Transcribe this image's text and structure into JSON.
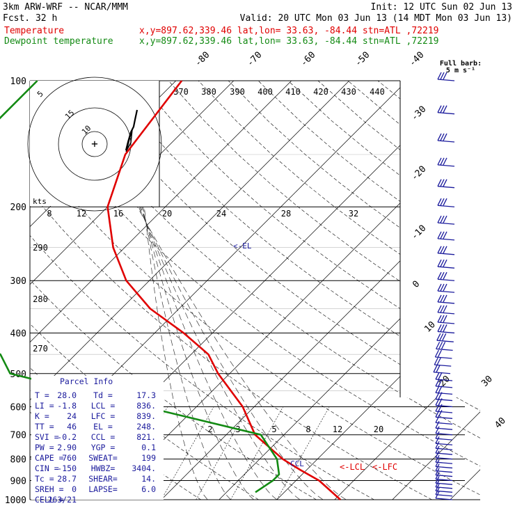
{
  "header": {
    "model": "3km ARW-WRF -- NCAR/MMM",
    "fcst": "Fcst.   32 h",
    "init": "Init: 12 UTC Sun 02 Jun 13",
    "valid": "Valid: 20 UTC Mon 03 Jun 13 (14 MDT Mon 03 Jun 13)",
    "temp_line": {
      "name": "Temperature",
      "info": "x,y=897.62,339.46   lat,lon= 33.63, -84.44   stn=ATL ,72219"
    },
    "dew_line": {
      "name": "Dewpoint temperature",
      "info": "x,y=897.62,339.46   lat,lon= 33.63, -84.44   stn=ATL ,72219"
    }
  },
  "barb_legend": {
    "line1": "Full barb:",
    "line2": "5 m s⁻¹"
  },
  "parcel_info": {
    "title": "Parcel Info",
    "rows": [
      [
        "T  =",
        "28.0",
        "Td =",
        "17.3"
      ],
      [
        "LI =",
        "-1.8",
        "LCL =",
        "836."
      ],
      [
        "K  =",
        "24",
        "LFC =",
        "839."
      ],
      [
        "TT =",
        "46",
        "EL  =",
        "248."
      ],
      [
        "SVI =",
        "-0.2",
        "CCL =",
        "821."
      ],
      [
        "PW =",
        "2.90",
        "YGP =",
        "0.1"
      ],
      [
        "CAPE =",
        "760",
        "SWEAT=",
        "199"
      ],
      [
        "CIN =",
        "-150",
        "HWBZ=",
        "3404."
      ],
      [
        "Tc =",
        "28.7",
        "SHEAR=",
        "14."
      ],
      [
        "SREH =",
        "0",
        "LAPSE=",
        "6.0"
      ],
      [
        "CELL =",
        "263/21",
        "",
        ""
      ]
    ]
  },
  "annotations": {
    "el": "<-EL",
    "lcl": "<-LCL",
    "lfc": "<-LFC",
    "ccl": "CCL",
    "kts": "kts"
  },
  "colors": {
    "temperature": "#e00000",
    "dewpoint": "#138a13",
    "info": "#1a1a9c",
    "barbs": "#1a1a9c"
  },
  "chart_data": {
    "type": "line",
    "title": "",
    "pressure_levels": [
      100,
      200,
      300,
      400,
      500,
      600,
      700,
      800,
      900,
      1000
    ],
    "y_axis": {
      "scale": "log-pressure",
      "ylim": [
        1000,
        100
      ],
      "units": "hPa"
    },
    "isotherm_labels": [
      "-80",
      "-70",
      "-60",
      "-50",
      "-40",
      "-30",
      "-20",
      "-10",
      "0",
      "10",
      "20",
      "30",
      "40"
    ],
    "theta_labels": [
      "370",
      "380",
      "390",
      "400",
      "410",
      "420",
      "430",
      "440"
    ],
    "theta_left_labels": [
      "290",
      "280",
      "270"
    ],
    "hodograph_speed_labels": [
      "8",
      "12",
      "16",
      "20",
      "24",
      "28",
      "32"
    ],
    "hodograph_ring_labels": [
      "5",
      "10",
      "15"
    ],
    "mixing_ratio_labels": [
      "2",
      "3",
      "5",
      "8",
      "12",
      "20"
    ],
    "series": [
      {
        "name": "Temperature",
        "color": "#e00000",
        "points": [
          [
            100,
            -69
          ],
          [
            150,
            -66
          ],
          [
            200,
            -60
          ],
          [
            250,
            -52
          ],
          [
            300,
            -44
          ],
          [
            350,
            -35
          ],
          [
            400,
            -25
          ],
          [
            450,
            -17
          ],
          [
            500,
            -12
          ],
          [
            600,
            -2
          ],
          [
            700,
            5
          ],
          [
            800,
            14
          ],
          [
            850,
            19
          ],
          [
            900,
            24
          ],
          [
            1000,
            31
          ]
        ]
      },
      {
        "name": "Dewpoint temperature",
        "color": "#138a13",
        "points": [
          [
            100,
            -94
          ],
          [
            140,
            -94
          ],
          [
            200,
            -84
          ],
          [
            250,
            -82
          ],
          [
            270,
            -78
          ],
          [
            300,
            -80
          ],
          [
            400,
            -66
          ],
          [
            450,
            -53
          ],
          [
            500,
            -48
          ],
          [
            600,
            -19
          ],
          [
            700,
            6
          ],
          [
            800,
            13
          ],
          [
            870,
            16
          ],
          [
            900,
            16
          ],
          [
            960,
            15
          ]
        ]
      }
    ]
  }
}
